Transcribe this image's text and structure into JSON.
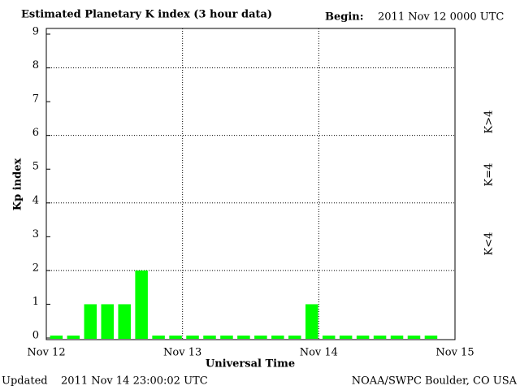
{
  "chart_data": {
    "type": "bar",
    "title": "Estimated Planetary K index (3 hour data)",
    "begin_label": "Begin:",
    "begin": "2011 Nov 12 0000 UTC",
    "y_label": "Kp index",
    "x_label": "Universal Time",
    "updated_label": "Updated",
    "updated": "2011 Nov 14 23:00:02 UTC",
    "credit": "NOAA/SWPC Boulder, CO USA",
    "x": [
      0,
      3,
      6,
      9,
      12,
      15,
      18,
      21,
      24,
      27,
      30,
      33,
      36,
      39,
      42,
      45,
      48,
      51,
      54,
      57,
      60,
      63,
      66
    ],
    "values": [
      0,
      0,
      1,
      1,
      1,
      2,
      0,
      0,
      0,
      0,
      0,
      0,
      0,
      0,
      0,
      1,
      0,
      0,
      0,
      0,
      0,
      0,
      0
    ],
    "color": "#00ff00",
    "xlim": [
      0,
      72
    ],
    "xticks": [
      {
        "value": 0,
        "label": "Nov 12"
      },
      {
        "value": 24,
        "label": "Nov 13"
      },
      {
        "value": 48,
        "label": "Nov 14"
      },
      {
        "value": 72,
        "label": "Nov 15"
      }
    ],
    "ylim": [
      0,
      9
    ],
    "yticks": [
      0,
      1,
      2,
      3,
      4,
      5,
      6,
      7,
      8,
      9
    ],
    "grid": true,
    "legend": [
      {
        "label": "K<4",
        "color": "#22ee22"
      },
      {
        "label": "K=4",
        "color": "#ffcc00"
      },
      {
        "label": "K>4",
        "color": "#ee3311"
      }
    ]
  }
}
